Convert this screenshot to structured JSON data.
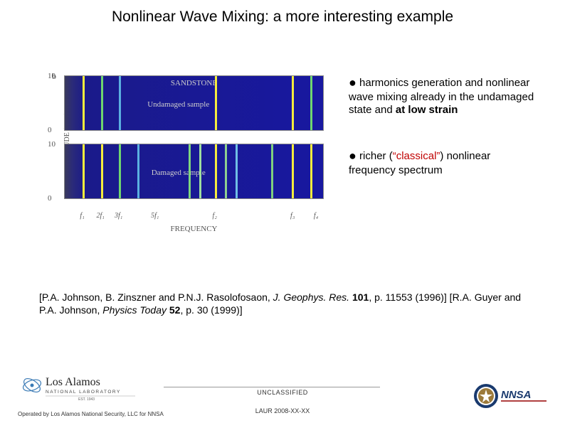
{
  "title": "Nonlinear Wave Mixing: a more interesting example",
  "chart": {
    "ylabel": "DRIVE AMPLITUDE (volts)",
    "xlabel": "FREQUENCY",
    "panel_label": "b",
    "panels": [
      {
        "title": "SANDSTONE",
        "subtitle": "Undamaged sample",
        "yticks": [
          "10",
          "0"
        ],
        "bg_gradient": [
          "#3a3a5c",
          "#1818a0"
        ],
        "lines": [
          {
            "pos_pct": 7,
            "color": "#f5ec3d"
          },
          {
            "pos_pct": 14,
            "color": "#6fd66f"
          },
          {
            "pos_pct": 21,
            "color": "#5bb0e0"
          },
          {
            "pos_pct": 58,
            "color": "#f5ec3d"
          },
          {
            "pos_pct": 88,
            "color": "#f5ec3d"
          },
          {
            "pos_pct": 95,
            "color": "#6fd66f"
          }
        ]
      },
      {
        "title": "",
        "subtitle": "Damaged sample",
        "yticks": [
          "10",
          "0"
        ],
        "bg_gradient": [
          "#3a3a5c",
          "#1818a0"
        ],
        "lines": [
          {
            "pos_pct": 7,
            "color": "#f5ec3d"
          },
          {
            "pos_pct": 14,
            "color": "#f5ec3d"
          },
          {
            "pos_pct": 21,
            "color": "#6fd66f"
          },
          {
            "pos_pct": 28,
            "color": "#5bb0e0"
          },
          {
            "pos_pct": 48,
            "color": "#7fd67f"
          },
          {
            "pos_pct": 52,
            "color": "#9fdf9f"
          },
          {
            "pos_pct": 58,
            "color": "#f5ec3d"
          },
          {
            "pos_pct": 62,
            "color": "#8fcf8f"
          },
          {
            "pos_pct": 66,
            "color": "#6fbfe5"
          },
          {
            "pos_pct": 80,
            "color": "#7fcf7f"
          },
          {
            "pos_pct": 88,
            "color": "#f5ec3d"
          },
          {
            "pos_pct": 95,
            "color": "#f5ec3d"
          }
        ]
      }
    ],
    "xticks": [
      {
        "label": "f₁",
        "pos_pct": 7
      },
      {
        "label": "2f₁",
        "pos_pct": 14
      },
      {
        "label": "3f₁",
        "pos_pct": 21
      },
      {
        "label": "5f₁",
        "pos_pct": 35
      },
      {
        "label": "f₂",
        "pos_pct": 58
      },
      {
        "label": "f₃",
        "pos_pct": 88
      },
      {
        "label": "f₄",
        "pos_pct": 97
      }
    ]
  },
  "bullets": {
    "b1_prefix": " harmonics generation and nonlinear wave mixing already in the undamaged state and ",
    "b1_bold": "at low strain",
    "b2_prefix": " richer (",
    "b2_classical": "“classical”",
    "b2_suffix": ") nonlinear frequency spectrum"
  },
  "citation": {
    "line1a": "[P.A. Johnson, B. Zinszner and P.N.J. Rasolofosaon, ",
    "line1b": "J. Geophys. Res.",
    "line1c": " ",
    "line1d": "101",
    "line1e": ", p. 11553 (1996)] [R.A. Guyer and P.A. Johnson, ",
    "line1f": "Physics Today",
    "line1g": " ",
    "line1h": "52",
    "line1i": ", p. 30 (1999)]"
  },
  "footer": {
    "operated": "Operated by Los Alamos National Security, LLC for NNSA",
    "unclassified": "UNCLASSIFIED",
    "laur": "LAUR 2008-XX-XX",
    "lanl_top": "Los Alamos",
    "lanl_bottom": "NATIONAL LABORATORY",
    "lanl_est": "EST. 1943",
    "nnsa": "NNSA"
  },
  "colors": {
    "accent_red": "#c00000",
    "text": "#000000",
    "muted": "#555555"
  }
}
